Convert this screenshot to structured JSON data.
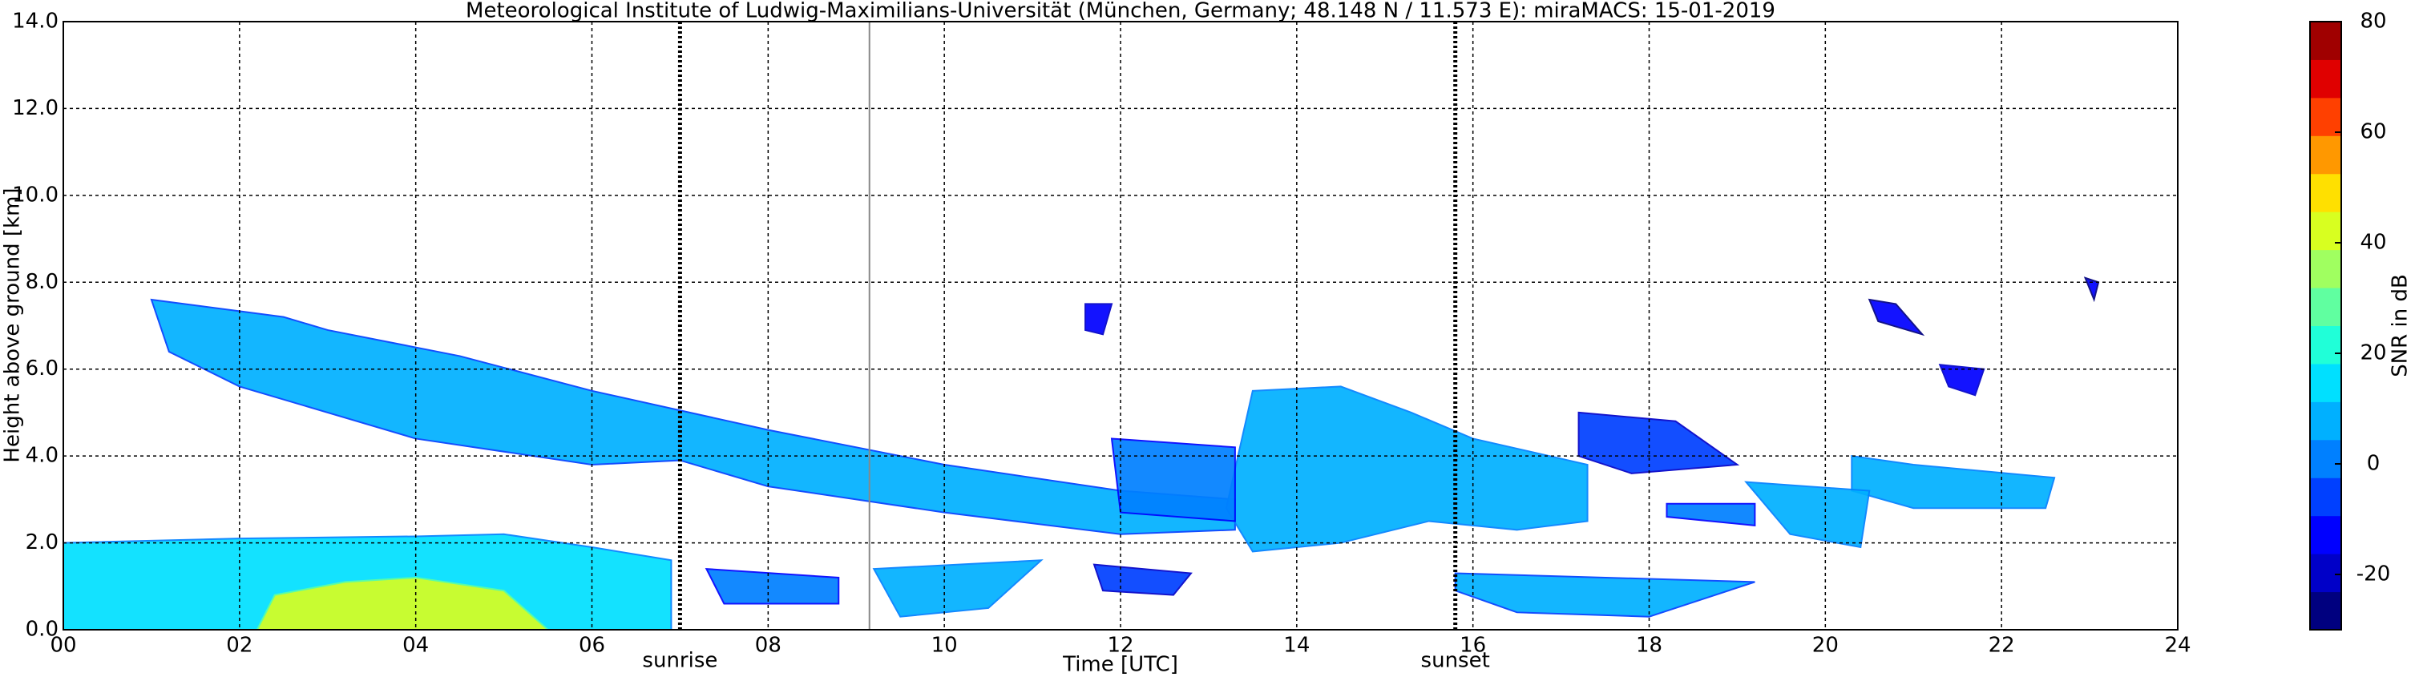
{
  "chart_data": {
    "type": "radar-heatmap",
    "title": "Meteorological Institute of Ludwig-Maximilians-Universität (München, Germany; 48.148 N / 11.573 E):    miraMACS: 15-01-2019",
    "x_label": "Time [UTC]",
    "y_label": "Height above ground [km]",
    "xlim": [
      0,
      24
    ],
    "xticks": [
      {
        "value": 0,
        "label": "00"
      },
      {
        "value": 2,
        "label": "02"
      },
      {
        "value": 4,
        "label": "04"
      },
      {
        "value": 6,
        "label": "06"
      },
      {
        "value": 8,
        "label": "08"
      },
      {
        "value": 10,
        "label": "10"
      },
      {
        "value": 12,
        "label": "12"
      },
      {
        "value": 14,
        "label": "14"
      },
      {
        "value": 16,
        "label": "16"
      },
      {
        "value": 18,
        "label": "18"
      },
      {
        "value": 20,
        "label": "20"
      },
      {
        "value": 22,
        "label": "22"
      },
      {
        "value": 24,
        "label": "24"
      }
    ],
    "ylim": [
      0,
      14
    ],
    "yticks": [
      {
        "value": 0,
        "label": "0.0"
      },
      {
        "value": 2,
        "label": "2.0"
      },
      {
        "value": 4,
        "label": "4.0"
      },
      {
        "value": 6,
        "label": "6.0"
      },
      {
        "value": 8,
        "label": "8.0"
      },
      {
        "value": 10,
        "label": "10.0"
      },
      {
        "value": 12,
        "label": "12.0"
      },
      {
        "value": 14,
        "label": "14.0"
      }
    ],
    "grid": true,
    "colorbar": {
      "label": "SNR in dB",
      "clim": [
        -30,
        80
      ],
      "ticks": [
        -20,
        0,
        20,
        40,
        60,
        80
      ],
      "colors": [
        "#00007f",
        "#0000c8",
        "#0000ff",
        "#0040ff",
        "#0080ff",
        "#00b0ff",
        "#00e0ff",
        "#20ffd8",
        "#60ffa0",
        "#a0ff60",
        "#d8ff20",
        "#ffe000",
        "#ff9800",
        "#ff4000",
        "#e00000",
        "#a00000"
      ]
    },
    "markers": [
      {
        "label": "sunrise",
        "x": 7.0,
        "style": "dotted"
      },
      {
        "label": "sunset",
        "x": 15.8,
        "style": "dotted"
      },
      {
        "x": 9.15,
        "style": "solid"
      }
    ],
    "layers": [
      {
        "snr": 15,
        "points": [
          [
            0,
            0
          ],
          [
            0,
            2.0
          ],
          [
            2,
            2.1
          ],
          [
            4,
            2.15
          ],
          [
            5,
            2.2
          ],
          [
            6,
            1.9
          ],
          [
            6.9,
            1.6
          ],
          [
            6.9,
            0
          ]
        ]
      },
      {
        "snr": 40,
        "points": [
          [
            2.2,
            0
          ],
          [
            2.4,
            0.8
          ],
          [
            3.2,
            1.1
          ],
          [
            4,
            1.2
          ],
          [
            5,
            0.9
          ],
          [
            5.5,
            0
          ]
        ]
      },
      {
        "snr": 5,
        "points": [
          [
            1.0,
            7.6
          ],
          [
            2.5,
            7.2
          ],
          [
            3,
            6.9
          ],
          [
            4.5,
            6.3
          ],
          [
            6,
            5.5
          ],
          [
            8,
            4.6
          ],
          [
            10,
            3.8
          ],
          [
            12,
            3.2
          ],
          [
            13.3,
            3.0
          ],
          [
            13.3,
            2.3
          ],
          [
            12,
            2.2
          ],
          [
            10,
            2.7
          ],
          [
            8,
            3.3
          ],
          [
            7,
            3.9
          ],
          [
            6,
            3.8
          ],
          [
            4,
            4.4
          ],
          [
            2,
            5.6
          ],
          [
            1.2,
            6.4
          ]
        ]
      },
      {
        "snr": 10,
        "points": [
          [
            13.5,
            5.5
          ],
          [
            14.5,
            5.6
          ],
          [
            15.3,
            5.0
          ],
          [
            16,
            4.4
          ],
          [
            17.3,
            3.8
          ],
          [
            17.3,
            2.5
          ],
          [
            16.5,
            2.3
          ],
          [
            15.5,
            2.5
          ],
          [
            14.5,
            2.0
          ],
          [
            13.5,
            1.8
          ],
          [
            13.2,
            2.8
          ]
        ]
      },
      {
        "snr": 0,
        "points": [
          [
            11.9,
            4.4
          ],
          [
            13.3,
            4.2
          ],
          [
            13.3,
            2.5
          ],
          [
            12,
            2.7
          ]
        ]
      },
      {
        "snr": -5,
        "points": [
          [
            17.2,
            5.0
          ],
          [
            18.3,
            4.8
          ],
          [
            19.0,
            3.8
          ],
          [
            17.8,
            3.6
          ],
          [
            17.2,
            4.0
          ]
        ]
      },
      {
        "snr": 10,
        "points": [
          [
            20.3,
            4.0
          ],
          [
            21,
            3.8
          ],
          [
            22.6,
            3.5
          ],
          [
            22.5,
            2.8
          ],
          [
            21,
            2.8
          ],
          [
            20.3,
            3.2
          ]
        ]
      },
      {
        "snr": 10,
        "points": [
          [
            19.1,
            3.4
          ],
          [
            20.5,
            3.2
          ],
          [
            20.4,
            1.9
          ],
          [
            19.6,
            2.2
          ]
        ]
      },
      {
        "snr": 0,
        "points": [
          [
            18.2,
            2.9
          ],
          [
            19.2,
            2.9
          ],
          [
            19.2,
            2.4
          ],
          [
            18.2,
            2.6
          ]
        ]
      },
      {
        "snr": 0,
        "points": [
          [
            7.3,
            1.4
          ],
          [
            8.8,
            1.2
          ],
          [
            8.8,
            0.6
          ],
          [
            7.5,
            0.6
          ]
        ]
      },
      {
        "snr": 10,
        "points": [
          [
            9.2,
            1.4
          ],
          [
            11.1,
            1.6
          ],
          [
            10.5,
            0.5
          ],
          [
            9.5,
            0.3
          ]
        ]
      },
      {
        "snr": 5,
        "points": [
          [
            15.8,
            1.3
          ],
          [
            19.2,
            1.1
          ],
          [
            18,
            0.3
          ],
          [
            16.5,
            0.4
          ],
          [
            15.8,
            0.9
          ]
        ]
      },
      {
        "snr": -5,
        "points": [
          [
            11.7,
            1.5
          ],
          [
            12.8,
            1.3
          ],
          [
            12.6,
            0.8
          ],
          [
            11.8,
            0.9
          ]
        ]
      },
      {
        "snr": -10,
        "points": [
          [
            21.3,
            6.1
          ],
          [
            21.8,
            6.0
          ],
          [
            21.7,
            5.4
          ],
          [
            21.4,
            5.6
          ]
        ]
      },
      {
        "snr": -15,
        "points": [
          [
            20.5,
            7.6
          ],
          [
            20.8,
            7.5
          ],
          [
            21.1,
            6.8
          ],
          [
            20.6,
            7.1
          ]
        ]
      },
      {
        "snr": -10,
        "points": [
          [
            11.6,
            7.5
          ],
          [
            11.9,
            7.5
          ],
          [
            11.8,
            6.8
          ],
          [
            11.6,
            6.9
          ]
        ]
      },
      {
        "snr": -15,
        "points": [
          [
            22.95,
            8.1
          ],
          [
            23.1,
            8.0
          ],
          [
            23.05,
            7.6
          ]
        ]
      }
    ]
  }
}
